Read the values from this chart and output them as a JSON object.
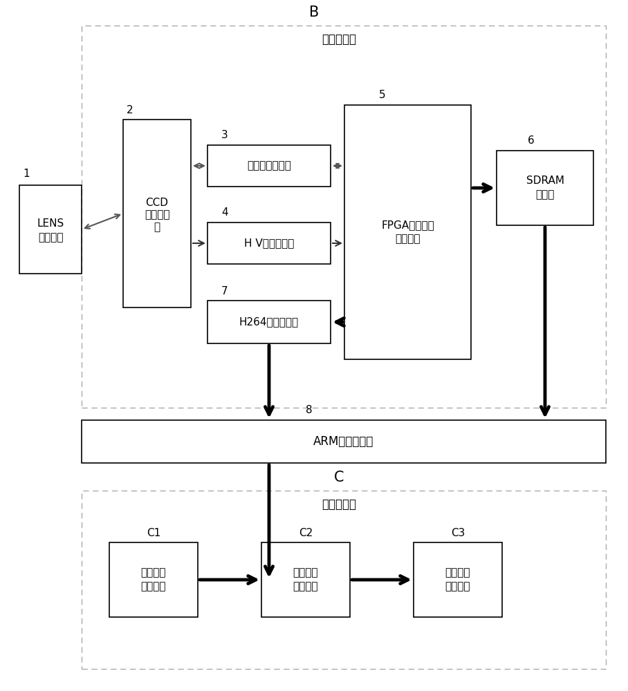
{
  "bg_color": "#ffffff",
  "text_color": "#000000",
  "title_B": "B",
  "title_C": "C",
  "label_wang_luo": "网络摄像机",
  "label_gong_ye": "工业控制机",
  "label_ARM": "ARM中心处理器",
  "label_1": "1",
  "label_2": "2",
  "label_3": "3",
  "label_4": "4",
  "label_5": "5",
  "label_6": "6",
  "label_7": "7",
  "label_8": "8",
  "label_C1": "C1",
  "label_C2": "C2",
  "label_C3": "C3",
  "box1_line1": "LENS",
  "box1_line2": "光学镜头",
  "box2_line1": "CCD",
  "box2_line2": "图像传感",
  "box2_line3": "器",
  "box3_text": "信号采集转换器",
  "box4_text": "H V信号驱动器",
  "box5_line1": "FPGA可编程逻",
  "box5_line2": "辑处理器",
  "box6_line1": "SDRAM",
  "box6_line2": "存储器",
  "box7_text": "H264录像编码器",
  "boxC1_line1": "实时图片",
  "boxC1_line2": "序列采集",
  "boxC2_line1": "运动车辆",
  "boxC2_line2": "检测分析",
  "boxC3_line1": "检测结果",
  "boxC3_line2": "输出处理"
}
